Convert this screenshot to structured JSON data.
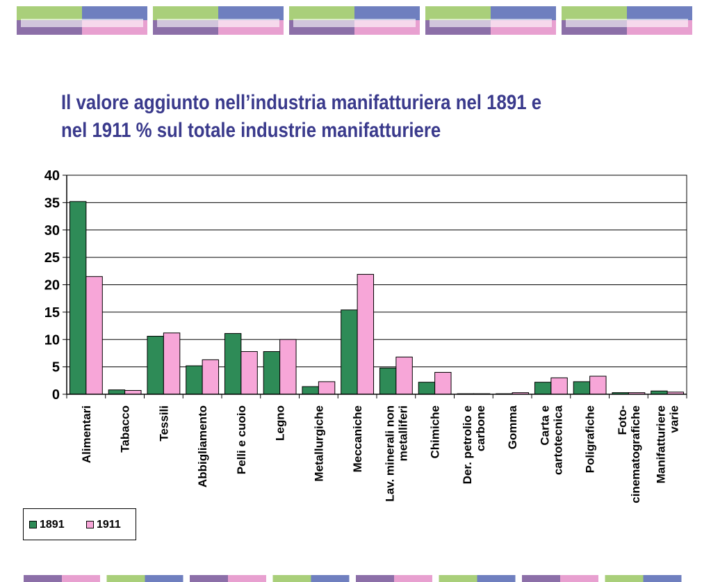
{
  "title": {
    "line1": "Il valore aggiunto nell’industria manifatturiera nel 1891 e",
    "line2": "nel 1911 % sul totale industrie manifatturiere"
  },
  "colors": {
    "series_1891": "#2e8b57",
    "series_1911": "#f7a6d8",
    "title": "#3a3a8c",
    "deco_green": "#a9cf7a",
    "deco_blue": "#6f7fbf",
    "deco_purple": "#8c6fa8",
    "deco_pink": "#e8a0d0"
  },
  "legend": {
    "items": [
      {
        "label": "1891",
        "color": "#2e8b57"
      },
      {
        "label": "1911",
        "color": "#f7a6d8"
      }
    ],
    "position": "bottom-left"
  },
  "chart_data": {
    "type": "bar",
    "categories": [
      "Alimentari",
      "Tabacco",
      "Tessili",
      "Abbigliamento",
      "Pelli e cuoio",
      "Legno",
      "Metallurgiche",
      "Meccaniche",
      "Lav. minerali non metalliferi",
      "Chimiche",
      "Der. petrolio e carbone",
      "Gomma",
      "Carta e cartotecnica",
      "Poligrafiche",
      "Foto-cinematografiche",
      "Manifatturiere varie"
    ],
    "category_lines": [
      [
        "Alimentari"
      ],
      [
        "Tabacco"
      ],
      [
        "Tessili"
      ],
      [
        "Abbigliamento"
      ],
      [
        "Pelli e cuoio"
      ],
      [
        "Legno"
      ],
      [
        "Metallurgiche"
      ],
      [
        "Meccaniche"
      ],
      [
        "Lav. minerali non",
        "metalliferi"
      ],
      [
        "Chimiche"
      ],
      [
        "Der. petrolio e",
        "carbone"
      ],
      [
        "Gomma"
      ],
      [
        "Carta e",
        "cartotecnica"
      ],
      [
        "Poligrafiche"
      ],
      [
        "Foto-",
        "cinematografiche"
      ],
      [
        "Manifatturiere",
        "varie"
      ]
    ],
    "series": [
      {
        "name": "1891",
        "values": [
          35.2,
          0.8,
          10.6,
          5.2,
          11.1,
          7.8,
          1.4,
          15.4,
          4.8,
          2.2,
          0.1,
          0.1,
          2.2,
          2.3,
          0.3,
          0.6
        ]
      },
      {
        "name": "1911",
        "values": [
          21.5,
          0.7,
          11.2,
          6.3,
          7.8,
          10.0,
          2.3,
          21.9,
          6.8,
          4.0,
          0.1,
          0.3,
          3.0,
          3.3,
          0.3,
          0.4
        ]
      }
    ],
    "y_ticks": [
      0,
      5,
      10,
      15,
      20,
      25,
      30,
      35,
      40
    ],
    "ylim": [
      0,
      40
    ],
    "grid": true,
    "xlabel": "",
    "ylabel": ""
  }
}
